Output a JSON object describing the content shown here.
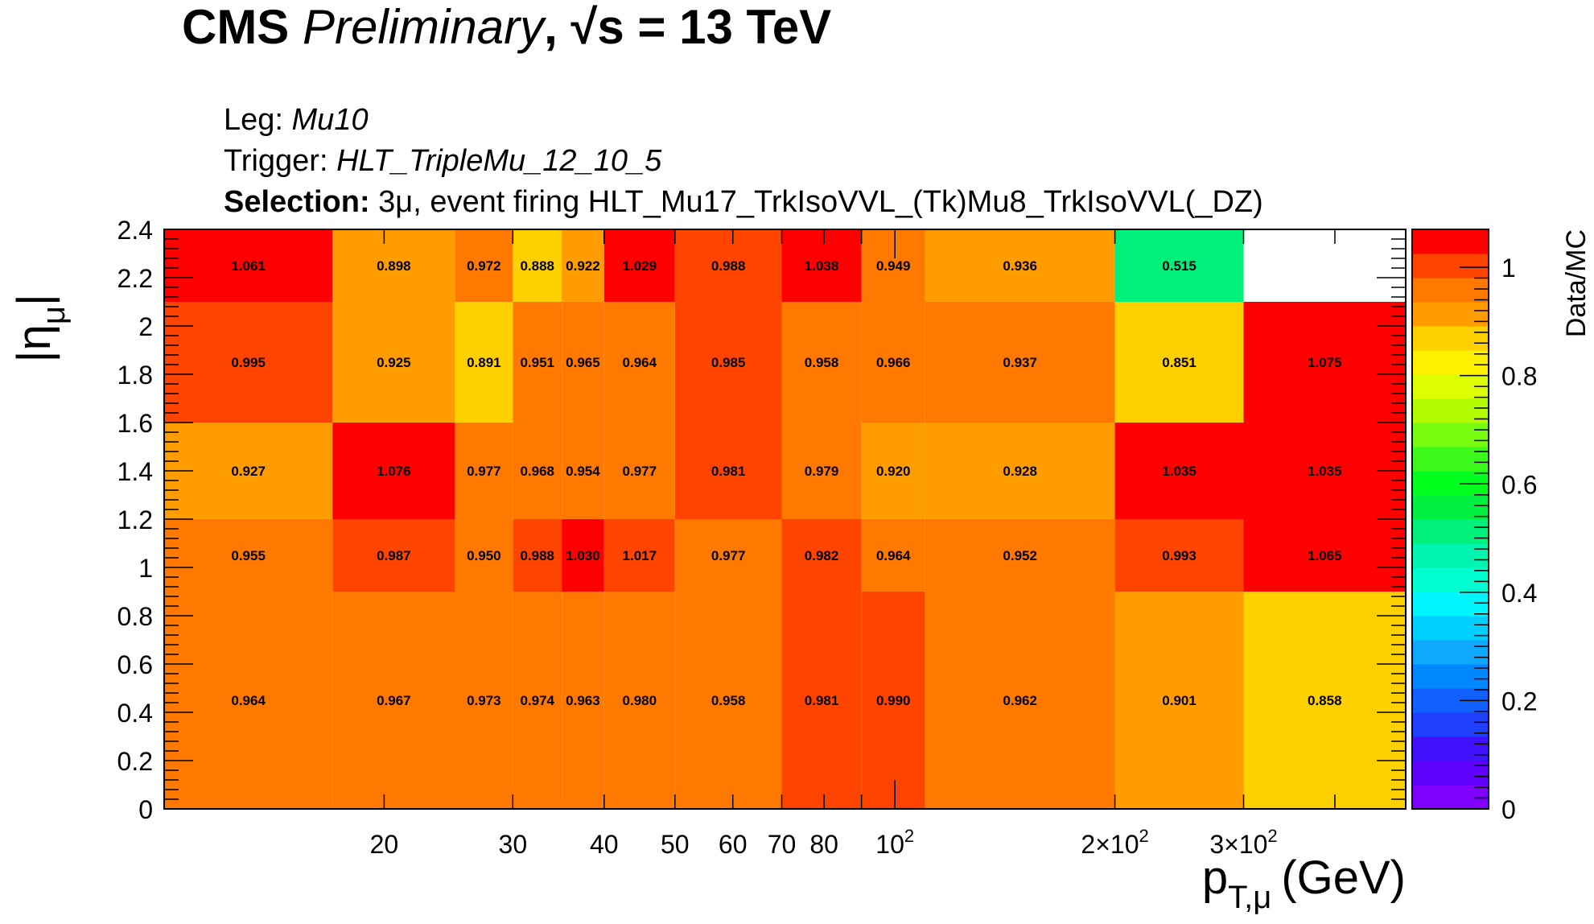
{
  "header": {
    "experiment": "CMS",
    "status": "Preliminary",
    "energy_prefix": "√s",
    "energy_value": "= 13 TeV"
  },
  "notes": {
    "leg_label": "Leg:",
    "leg_value": "Mu10",
    "trigger_label": "Trigger:",
    "trigger_value": "HLT_TripleMu_12_10_5",
    "selection_label": "Selection:",
    "selection_value": "3μ, event firing HLT_Mu17_TrkIsoVVL_(Tk)Mu8_TrkIsoVVL(_DZ)"
  },
  "chart_data": {
    "type": "heatmap",
    "title": "",
    "xlabel": "p",
    "xlabel_sub": "T,μ",
    "xlabel_unit": "(GeV)",
    "ylabel": "|η",
    "ylabel_sub": "μ",
    "ylabel_close": "|",
    "zlabel": "Data/MC",
    "x_scale": "log",
    "xlim": [
      10,
      500
    ],
    "ylim": [
      0,
      2.4
    ],
    "zlim": [
      0,
      1.07
    ],
    "x_edges": [
      10,
      17,
      25,
      30,
      35,
      40,
      50,
      70,
      90,
      110,
      200,
      300,
      500
    ],
    "y_edges": [
      0,
      0.9,
      1.2,
      1.6,
      2.1,
      2.4
    ],
    "values": [
      [
        0.964,
        0.967,
        0.973,
        0.974,
        0.963,
        0.98,
        0.958,
        0.981,
        0.99,
        0.962,
        0.901,
        0.858
      ],
      [
        0.955,
        0.987,
        0.95,
        0.988,
        1.03,
        1.017,
        0.977,
        0.982,
        0.964,
        0.952,
        0.993,
        1.065
      ],
      [
        0.927,
        1.076,
        0.977,
        0.968,
        0.954,
        0.977,
        0.981,
        0.979,
        0.92,
        0.928,
        1.035,
        1.035
      ],
      [
        0.995,
        0.925,
        0.891,
        0.951,
        0.965,
        0.964,
        0.985,
        0.958,
        0.966,
        0.937,
        0.851,
        1.075
      ],
      [
        1.061,
        0.898,
        0.972,
        0.888,
        0.922,
        1.029,
        0.988,
        1.038,
        0.949,
        0.936,
        0.515,
        null
      ]
    ],
    "x_tick_labels": [
      {
        "value": 20,
        "label": "20"
      },
      {
        "value": 30,
        "label": "30"
      },
      {
        "value": 40,
        "label": "40"
      },
      {
        "value": 50,
        "label": "50"
      },
      {
        "value": 60,
        "label": "60"
      },
      {
        "value": 70,
        "label": "70"
      },
      {
        "value": 80,
        "label": "80"
      },
      {
        "value": 100,
        "label": "10",
        "sup": "2"
      },
      {
        "value": 200,
        "label": "2×10",
        "sup": "2"
      },
      {
        "value": 300,
        "label": "3×10",
        "sup": "2"
      }
    ],
    "y_tick_labels": [
      "0",
      "0.2",
      "0.4",
      "0.6",
      "0.8",
      "1",
      "1.2",
      "1.4",
      "1.6",
      "1.8",
      "2",
      "2.2",
      "2.4"
    ],
    "z_tick_labels": [
      {
        "value": 0,
        "label": "0"
      },
      {
        "value": 0.2,
        "label": "0.2"
      },
      {
        "value": 0.4,
        "label": "0.4"
      },
      {
        "value": 0.6,
        "label": "0.6"
      },
      {
        "value": 0.8,
        "label": "0.8"
      },
      {
        "value": 1,
        "label": "1"
      }
    ],
    "palette": [
      "#7f00ff",
      "#6000ff",
      "#4010ff",
      "#2040ff",
      "#1060ff",
      "#0088ff",
      "#10a8ff",
      "#00cfff",
      "#00f6ff",
      "#00ffd0",
      "#00f5b0",
      "#00f07c",
      "#00f040",
      "#00ff1c",
      "#3cf91c",
      "#78fc10",
      "#b2fb00",
      "#deff00",
      "#fff000",
      "#ffd000",
      "#ff9d00",
      "#ff7800",
      "#ff4400",
      "#ff0000"
    ]
  }
}
